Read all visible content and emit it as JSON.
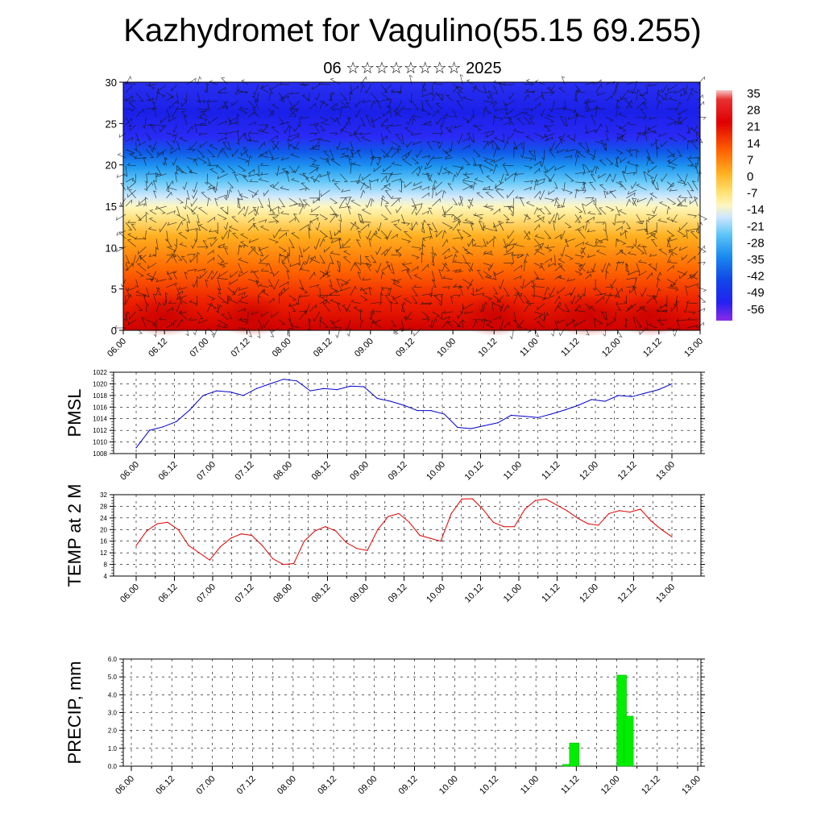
{
  "title": "Kazhydromet for Vagulino(55.15 69.255)",
  "subtitle": "06 ☆☆☆☆☆☆☆☆ 2025",
  "time_labels": [
    "06.00",
    "06.12",
    "07.00",
    "07.12",
    "08.00",
    "08.12",
    "09.00",
    "09.12",
    "10.00",
    "10.12",
    "11.00",
    "11.12",
    "12.00",
    "12.12",
    "13.00"
  ],
  "colors": {
    "pmsl_line": "#0000cc",
    "temp_line": "#dd0000",
    "precip_bar": "#00ee00",
    "precip_edge": "#00aa00"
  },
  "chart_data": [
    {
      "type": "heatmap",
      "title": "",
      "ylabel": "",
      "ylim": [
        0,
        30
      ],
      "y_ticks": [
        "0",
        "5",
        "10",
        "15",
        "20",
        "25",
        "30"
      ],
      "colorbar_labels": [
        "35",
        "28",
        "21",
        "14",
        "7",
        "0",
        "-7",
        "-14",
        "-21",
        "-28",
        "-35",
        "-42",
        "-49",
        "-56"
      ],
      "colorbar_range": [
        -60,
        38
      ],
      "x_range": [
        0,
        14
      ],
      "description_levels": [
        {
          "level": 0,
          "temp": 26
        },
        {
          "level": 3,
          "temp": 22
        },
        {
          "level": 6,
          "temp": 16
        },
        {
          "level": 9,
          "temp": 8
        },
        {
          "level": 12,
          "temp": 0
        },
        {
          "level": 15,
          "temp": -8
        },
        {
          "level": 17,
          "temp": -20
        },
        {
          "level": 20,
          "temp": -35
        },
        {
          "level": 23,
          "temp": -50
        },
        {
          "level": 26,
          "temp": -58
        },
        {
          "level": 30,
          "temp": -56
        }
      ]
    },
    {
      "type": "line",
      "ylabel": "PMSL",
      "ylim": [
        1008,
        1022
      ],
      "y_ticks": [
        "1008",
        "1010",
        "1012",
        "1014",
        "1016",
        "1018",
        "1020",
        "1022"
      ],
      "series": [
        {
          "values": [
            1009.0,
            1012.0,
            1012.6,
            1013.5,
            1015.5,
            1018.0,
            1018.8,
            1018.6,
            1018.0,
            1019.2,
            1020.0,
            1020.8,
            1020.5,
            1018.8,
            1019.2,
            1019.0,
            1019.6,
            1019.5,
            1017.5,
            1017.0,
            1016.3,
            1015.4,
            1015.4,
            1014.8,
            1012.5,
            1012.3,
            1012.8,
            1013.3,
            1014.6,
            1014.4,
            1014.2,
            1014.8,
            1015.5,
            1016.3,
            1017.3,
            1017.0,
            1018.0,
            1017.8,
            1018.4,
            1019.0,
            1020.0
          ]
        }
      ]
    },
    {
      "type": "line",
      "ylabel": "TEMP at 2 M",
      "ylim": [
        4,
        32
      ],
      "y_ticks": [
        "4",
        "8",
        "12",
        "16",
        "20",
        "24",
        "28",
        "32"
      ],
      "series": [
        {
          "values": [
            14.5,
            19.5,
            22.0,
            22.5,
            20.0,
            14.5,
            12.0,
            9.5,
            14.0,
            17.0,
            18.5,
            18.0,
            14.5,
            10.0,
            8.0,
            8.3,
            16.0,
            19.5,
            21.0,
            19.5,
            15.5,
            13.5,
            12.8,
            20.0,
            24.5,
            25.5,
            22.5,
            18.0,
            17.0,
            16.0,
            25.5,
            30.5,
            30.6,
            27.0,
            22.5,
            21.0,
            21.0,
            27.0,
            30.0,
            30.5,
            28.5,
            26.5,
            24.0,
            22.0,
            21.5,
            25.5,
            26.5,
            26.0,
            27.0,
            23.0,
            20.0,
            17.5
          ]
        }
      ]
    },
    {
      "type": "bar",
      "ylabel": "PRECIP, mm",
      "ylim": [
        0,
        6
      ],
      "y_ticks": [
        "0.0",
        "1.0",
        "2.0",
        "3.0",
        "4.0",
        "5.0",
        "6.0"
      ],
      "bars": [
        {
          "t": 10.78,
          "value": 0.1
        },
        {
          "t": 10.95,
          "value": 1.3
        },
        {
          "t": 12.12,
          "value": 5.1
        },
        {
          "t": 12.29,
          "value": 2.8
        }
      ]
    }
  ]
}
